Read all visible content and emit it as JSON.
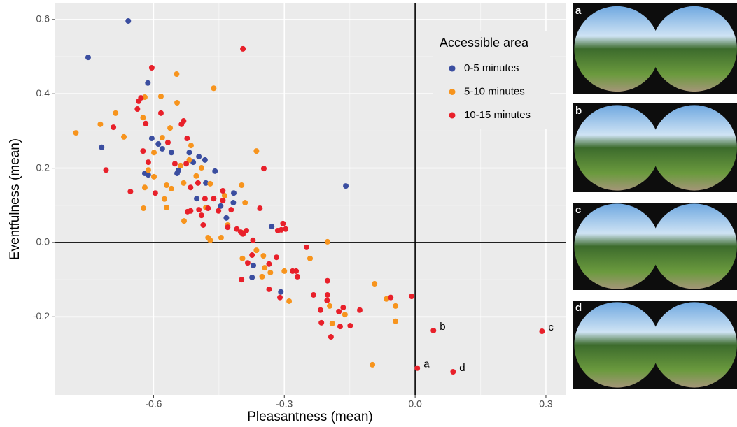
{
  "chart_data": {
    "type": "scatter",
    "x_label": "Pleasantness (mean)",
    "y_label": "Eventfulness (mean)",
    "xlim": [
      -0.827,
      0.345
    ],
    "ylim": [
      -0.41,
      0.643
    ],
    "xticks": [
      -0.6,
      -0.3,
      {
        "value": 0,
        "label": "0.0"
      },
      0.3
    ],
    "yticks": [
      -0.2,
      {
        "value": 0,
        "label": "0.0"
      },
      0.2,
      0.4,
      0.6
    ],
    "grid": true,
    "hline": 0,
    "vline": 0,
    "legend_title": "Accessible area",
    "legend_position": "top-right",
    "series": [
      {
        "name": "0-5 minutes",
        "color": "#3b4ea0",
        "x": [
          -0.658,
          -0.75,
          -0.719,
          -0.613,
          -0.604,
          -0.62,
          -0.612,
          -0.589,
          -0.58,
          -0.543,
          -0.518,
          -0.509,
          -0.496,
          -0.482,
          -0.459,
          -0.48,
          -0.501,
          -0.446,
          -0.416,
          -0.417,
          -0.433,
          -0.329,
          -0.371,
          -0.374,
          -0.308,
          -0.159,
          -0.559,
          -0.546
        ],
        "y": [
          0.596,
          0.498,
          0.256,
          0.429,
          0.28,
          0.186,
          0.182,
          0.265,
          0.252,
          0.194,
          0.242,
          0.216,
          0.231,
          0.222,
          0.192,
          0.16,
          0.118,
          0.098,
          0.133,
          0.107,
          0.066,
          0.043,
          -0.062,
          -0.094,
          -0.133,
          0.152,
          0.242,
          0.186
        ]
      },
      {
        "name": "5-10 minutes",
        "color": "#f7941d",
        "x": [
          -0.778,
          -0.722,
          -0.687,
          -0.668,
          -0.624,
          -0.62,
          -0.583,
          -0.547,
          -0.546,
          -0.462,
          -0.562,
          -0.58,
          -0.599,
          -0.612,
          -0.599,
          -0.62,
          -0.623,
          -0.57,
          -0.559,
          -0.575,
          -0.57,
          -0.531,
          -0.53,
          -0.514,
          -0.502,
          -0.49,
          -0.47,
          -0.48,
          -0.475,
          -0.445,
          -0.43,
          -0.437,
          -0.398,
          -0.39,
          -0.364,
          -0.393,
          -0.364,
          -0.348,
          -0.345,
          -0.332,
          -0.351,
          -0.396,
          -0.3,
          -0.289,
          -0.201,
          -0.241,
          -0.196,
          -0.19,
          -0.161,
          -0.093,
          -0.066,
          -0.045,
          -0.045,
          -0.098,
          -0.538,
          -0.518,
          -0.47
        ],
        "y": [
          0.295,
          0.318,
          0.348,
          0.284,
          0.336,
          0.391,
          0.393,
          0.453,
          0.376,
          0.415,
          0.308,
          0.282,
          0.242,
          0.195,
          0.177,
          0.148,
          0.092,
          0.154,
          0.145,
          0.117,
          0.094,
          0.16,
          0.058,
          0.261,
          0.179,
          0.201,
          0.158,
          0.094,
          0.013,
          0.013,
          0.047,
          0.126,
          0.154,
          0.107,
          0.246,
          0.026,
          -0.021,
          -0.036,
          -0.068,
          -0.081,
          -0.092,
          -0.043,
          -0.077,
          -0.158,
          0.002,
          -0.043,
          -0.171,
          -0.218,
          -0.194,
          -0.111,
          -0.152,
          -0.171,
          -0.212,
          -0.329,
          0.207,
          0.222,
          0.006
        ]
      },
      {
        "name": "10-15 minutes",
        "color": "#e8202a",
        "x": [
          -0.604,
          -0.395,
          -0.637,
          -0.629,
          -0.634,
          -0.618,
          -0.583,
          -0.531,
          -0.536,
          -0.692,
          -0.709,
          -0.653,
          -0.624,
          -0.612,
          -0.567,
          -0.596,
          -0.551,
          -0.525,
          -0.515,
          -0.515,
          -0.522,
          -0.496,
          -0.49,
          -0.482,
          -0.498,
          -0.462,
          -0.486,
          -0.475,
          -0.451,
          -0.441,
          -0.441,
          -0.422,
          -0.43,
          -0.409,
          -0.4,
          -0.387,
          -0.395,
          -0.372,
          -0.347,
          -0.356,
          -0.307,
          -0.315,
          -0.303,
          -0.297,
          -0.384,
          -0.374,
          -0.335,
          -0.318,
          -0.398,
          -0.335,
          -0.31,
          -0.281,
          -0.27,
          -0.273,
          -0.249,
          -0.233,
          -0.217,
          -0.215,
          -0.201,
          -0.201,
          -0.202,
          -0.193,
          -0.175,
          -0.172,
          -0.165,
          -0.149,
          -0.127,
          -0.056,
          -0.008,
          0.005,
          0.042,
          0.087,
          0.291,
          -0.523
        ],
        "y": [
          0.47,
          0.521,
          0.359,
          0.389,
          0.38,
          0.32,
          0.348,
          0.327,
          0.318,
          0.31,
          0.195,
          0.137,
          0.246,
          0.216,
          0.269,
          0.133,
          0.212,
          0.212,
          0.148,
          0.085,
          0.083,
          0.088,
          0.073,
          0.118,
          0.16,
          0.118,
          0.047,
          0.092,
          0.085,
          0.139,
          0.113,
          0.088,
          0.041,
          0.036,
          0.028,
          0.032,
          0.023,
          0.006,
          0.199,
          0.092,
          0.034,
          0.032,
          0.051,
          0.036,
          -0.055,
          -0.034,
          -0.058,
          -0.04,
          -0.1,
          -0.126,
          -0.148,
          -0.077,
          -0.092,
          -0.077,
          -0.013,
          -0.141,
          -0.182,
          -0.216,
          -0.103,
          -0.141,
          -0.156,
          -0.254,
          -0.186,
          -0.226,
          -0.175,
          -0.224,
          -0.182,
          -0.148,
          -0.145,
          -0.338,
          -0.237,
          -0.348,
          -0.239,
          0.28
        ]
      }
    ],
    "annotations": [
      {
        "text": "a",
        "x": 0.005,
        "y": -0.338
      },
      {
        "text": "b",
        "x": 0.042,
        "y": -0.237
      },
      {
        "text": "c",
        "x": 0.291,
        "y": -0.239
      },
      {
        "text": "d",
        "x": 0.087,
        "y": -0.348
      }
    ]
  },
  "photos": [
    {
      "label": "a"
    },
    {
      "label": "b"
    },
    {
      "label": "c"
    },
    {
      "label": "d"
    }
  ]
}
